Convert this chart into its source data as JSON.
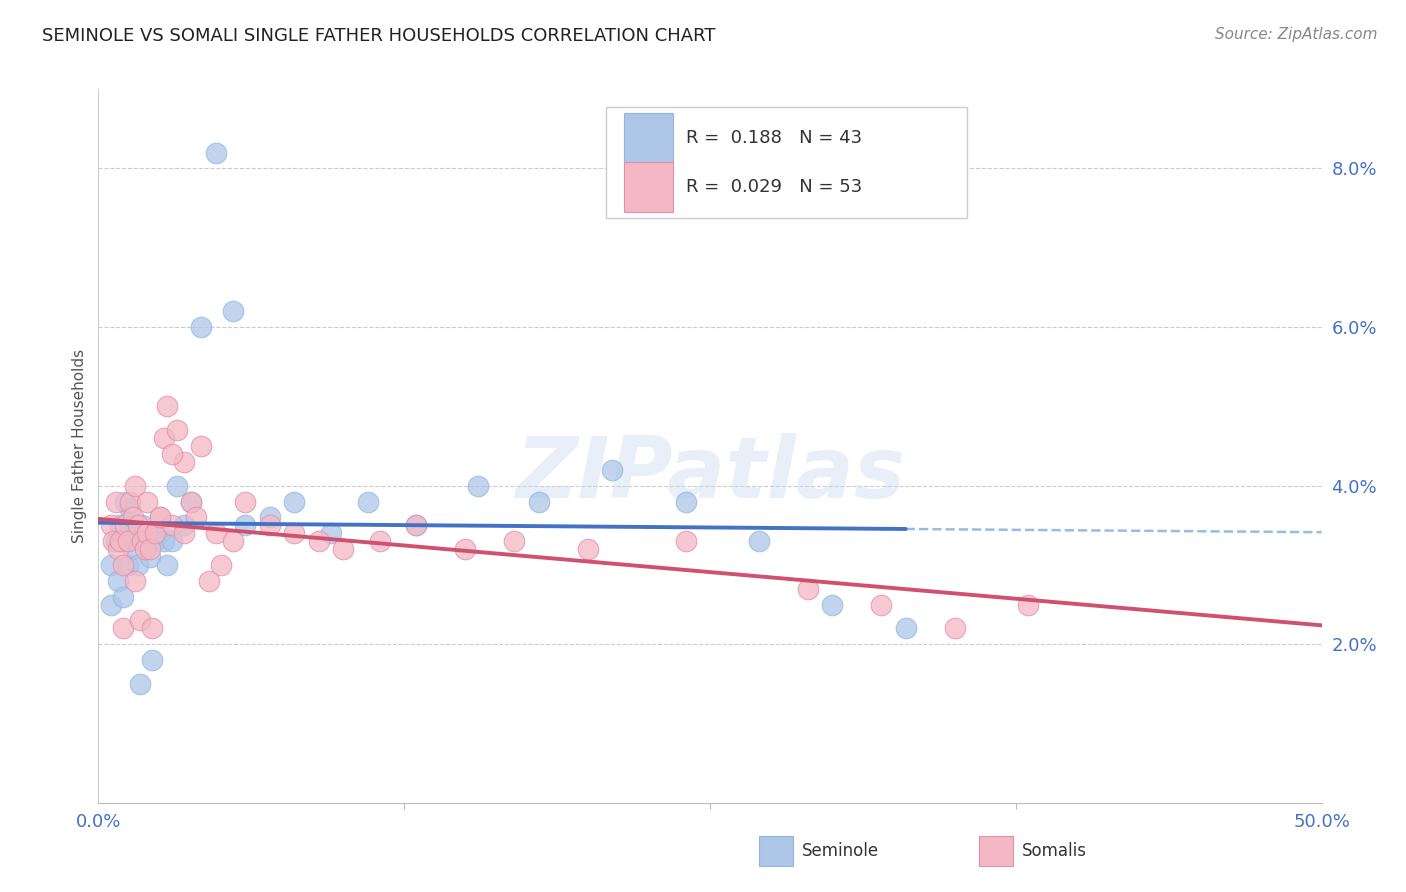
{
  "title": "SEMINOLE VS SOMALI SINGLE FATHER HOUSEHOLDS CORRELATION CHART",
  "source": "Source: ZipAtlas.com",
  "ylabel": "Single Father Households",
  "xmin": 0.0,
  "xmax": 0.5,
  "ymin": 0.0,
  "ymax": 0.09,
  "yticks": [
    0.02,
    0.04,
    0.06,
    0.08
  ],
  "ytick_labels": [
    "2.0%",
    "4.0%",
    "6.0%",
    "8.0%"
  ],
  "watermark": "ZIPatlas",
  "seminole_R": "0.188",
  "seminole_N": "43",
  "somali_R": "0.029",
  "somali_N": "53",
  "seminole_color": "#aec6e8",
  "somali_color": "#f4b8c4",
  "line_seminole_color": "#4472c4",
  "line_somali_color": "#d05070",
  "seminole_x": [
    0.005,
    0.005,
    0.007,
    0.008,
    0.009,
    0.01,
    0.01,
    0.011,
    0.012,
    0.013,
    0.014,
    0.015,
    0.016,
    0.017,
    0.018,
    0.019,
    0.02,
    0.021,
    0.022,
    0.023,
    0.025,
    0.027,
    0.028,
    0.03,
    0.032,
    0.035,
    0.038,
    0.042,
    0.048,
    0.055,
    0.06,
    0.07,
    0.08,
    0.095,
    0.11,
    0.13,
    0.155,
    0.18,
    0.21,
    0.24,
    0.27,
    0.3,
    0.33
  ],
  "seminole_y": [
    0.03,
    0.025,
    0.033,
    0.028,
    0.035,
    0.033,
    0.026,
    0.038,
    0.03,
    0.037,
    0.032,
    0.035,
    0.03,
    0.015,
    0.035,
    0.033,
    0.034,
    0.031,
    0.018,
    0.033,
    0.034,
    0.033,
    0.03,
    0.033,
    0.04,
    0.035,
    0.038,
    0.06,
    0.082,
    0.062,
    0.035,
    0.036,
    0.038,
    0.034,
    0.038,
    0.035,
    0.04,
    0.038,
    0.042,
    0.038,
    0.033,
    0.025,
    0.022
  ],
  "somali_x": [
    0.005,
    0.006,
    0.007,
    0.008,
    0.009,
    0.01,
    0.01,
    0.011,
    0.012,
    0.013,
    0.014,
    0.015,
    0.016,
    0.017,
    0.018,
    0.019,
    0.02,
    0.021,
    0.022,
    0.023,
    0.025,
    0.027,
    0.028,
    0.03,
    0.032,
    0.035,
    0.038,
    0.042,
    0.048,
    0.055,
    0.06,
    0.07,
    0.08,
    0.09,
    0.1,
    0.115,
    0.13,
    0.15,
    0.17,
    0.2,
    0.24,
    0.29,
    0.32,
    0.35,
    0.38,
    0.03,
    0.02,
    0.025,
    0.015,
    0.035,
    0.04,
    0.045,
    0.05
  ],
  "somali_y": [
    0.035,
    0.033,
    0.038,
    0.032,
    0.033,
    0.03,
    0.022,
    0.035,
    0.033,
    0.038,
    0.036,
    0.04,
    0.035,
    0.023,
    0.033,
    0.032,
    0.034,
    0.032,
    0.022,
    0.034,
    0.036,
    0.046,
    0.05,
    0.035,
    0.047,
    0.043,
    0.038,
    0.045,
    0.034,
    0.033,
    0.038,
    0.035,
    0.034,
    0.033,
    0.032,
    0.033,
    0.035,
    0.032,
    0.033,
    0.032,
    0.033,
    0.027,
    0.025,
    0.022,
    0.025,
    0.044,
    0.038,
    0.036,
    0.028,
    0.034,
    0.036,
    0.028,
    0.03
  ]
}
